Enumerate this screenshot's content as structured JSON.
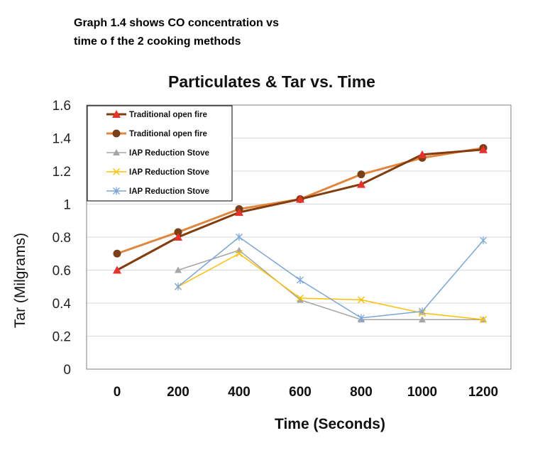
{
  "caption": {
    "line1": "Graph 1.4 shows CO concentration vs",
    "line2": "time o f the 2 cooking methods"
  },
  "chart_data": {
    "type": "line",
    "title": "Particulates & Tar vs. Time",
    "xlabel": "Time (Seconds)",
    "ylabel": "Tar (Milgrams)",
    "categories": [
      "0",
      "200",
      "400",
      "600",
      "800",
      "1000",
      "1200"
    ],
    "x": [
      0,
      200,
      400,
      600,
      800,
      1000,
      1200
    ],
    "ylim": [
      0,
      1.6
    ],
    "yticks": [
      "0",
      "0.2",
      "0.4",
      "0.6",
      "0.8",
      "1",
      "1.2",
      "1.4",
      "1.6"
    ],
    "grid": true,
    "legend_position": "top-left",
    "series": [
      {
        "name": "Traditional open fire",
        "color": "#843C0C",
        "marker": "triangle-red",
        "values": [
          0.6,
          0.8,
          0.95,
          1.03,
          1.12,
          1.3,
          1.33
        ]
      },
      {
        "name": "Traditional open fire",
        "color": "#E0873F",
        "marker": "circle-brown",
        "values": [
          0.7,
          0.83,
          0.97,
          1.03,
          1.18,
          1.28,
          1.34
        ]
      },
      {
        "name": "IAP Reduction Stove",
        "color": "#A5A5A5",
        "marker": "triangle",
        "values": [
          null,
          0.6,
          0.72,
          0.42,
          0.3,
          0.3,
          0.3
        ]
      },
      {
        "name": "IAP Reduction Stove",
        "color": "#FFC000",
        "marker": "x",
        "values": [
          null,
          0.5,
          0.7,
          0.43,
          0.42,
          0.34,
          0.3
        ]
      },
      {
        "name": "IAP Reduction Stove",
        "color": "#7AA6D8",
        "marker": "asterisk",
        "values": [
          null,
          0.5,
          0.8,
          0.54,
          0.31,
          0.35,
          0.78
        ]
      }
    ]
  }
}
